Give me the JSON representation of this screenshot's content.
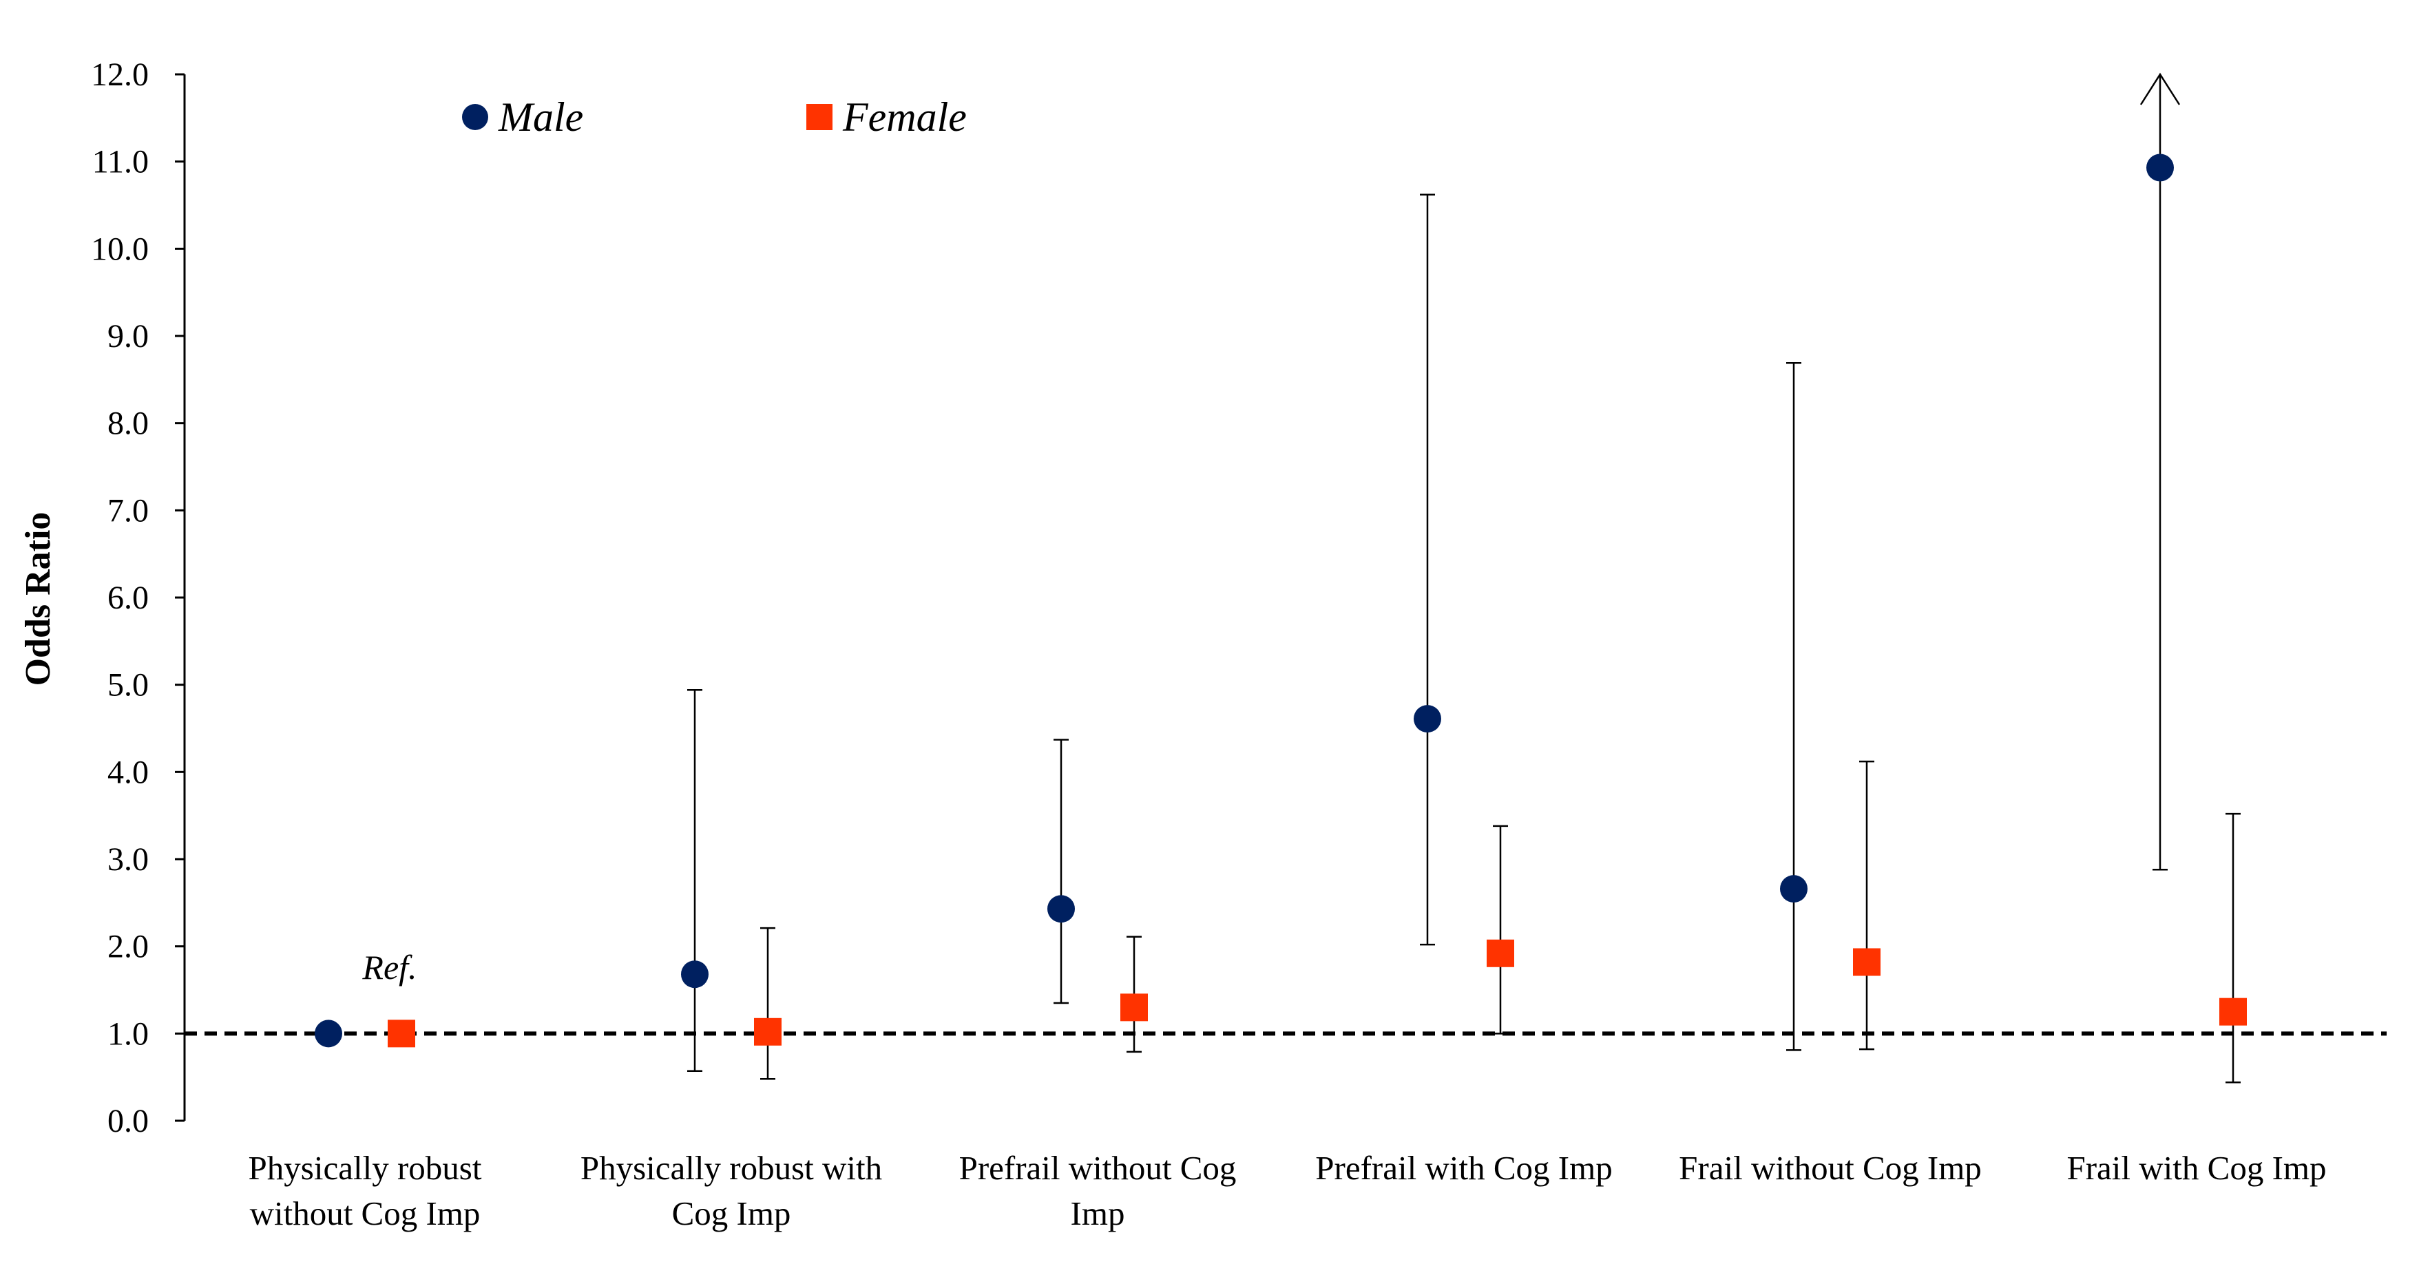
{
  "chart_data": {
    "type": "scatter",
    "ylabel": "Odds Ratio",
    "ylim": [
      0,
      12
    ],
    "yticks": [
      "0.0",
      "1.0",
      "2.0",
      "3.0",
      "4.0",
      "5.0",
      "6.0",
      "7.0",
      "8.0",
      "9.0",
      "10.0",
      "11.0",
      "12.0"
    ],
    "reference_line": 1.0,
    "reference_label": "Ref.",
    "legend_position": "top-left",
    "categories": [
      [
        "Physically robust",
        "without Cog Imp"
      ],
      [
        "Physically robust with",
        "Cog Imp"
      ],
      [
        "Prefrail without Cog",
        "Imp"
      ],
      [
        "Prefrail with Cog Imp"
      ],
      [
        "Frail without Cog Imp"
      ],
      [
        "Frail with Cog Imp"
      ]
    ],
    "series": [
      {
        "name": "Male",
        "marker": "circle",
        "color": "#002060",
        "values": [
          1.0,
          1.68,
          2.43,
          4.61,
          2.66,
          10.93
        ],
        "ci_low": [
          null,
          0.57,
          1.35,
          2.02,
          0.81,
          2.88
        ],
        "ci_high": [
          null,
          4.94,
          4.37,
          10.62,
          8.69,
          12.0
        ],
        "ci_high_truncated": [
          false,
          false,
          false,
          false,
          false,
          true
        ]
      },
      {
        "name": "Female",
        "marker": "square",
        "color": "#ff3300",
        "values": [
          1.0,
          1.02,
          1.3,
          1.92,
          1.82,
          1.25
        ],
        "ci_low": [
          null,
          0.48,
          0.79,
          1.0,
          0.82,
          0.44
        ],
        "ci_high": [
          null,
          2.21,
          2.11,
          3.38,
          4.12,
          3.52
        ],
        "ci_high_truncated": [
          false,
          false,
          false,
          false,
          false,
          false
        ]
      }
    ]
  }
}
